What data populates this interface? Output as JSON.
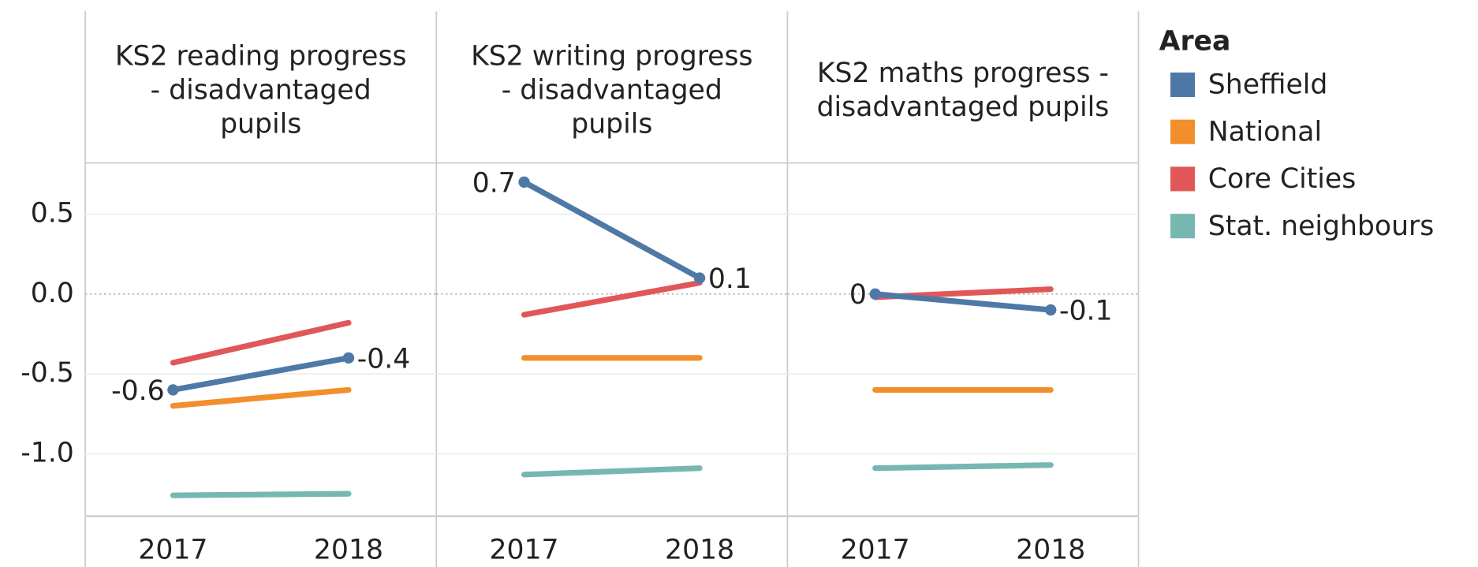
{
  "chart_data": [
    {
      "type": "line",
      "title": [
        "KS2 reading progress",
        "- disadvantaged",
        "pupils"
      ],
      "legend_title": "Area",
      "categories": [
        "2017",
        "2018"
      ],
      "series": [
        {
          "name": "Sheffield",
          "color": "#4e79a7",
          "values": [
            -0.6,
            -0.4
          ],
          "labels": true
        },
        {
          "name": "National",
          "color": "#f28e2b",
          "values": [
            -0.7,
            -0.6
          ]
        },
        {
          "name": "Core Cities",
          "color": "#e15759",
          "values": [
            -0.43,
            -0.18
          ]
        },
        {
          "name": "Stat. neighbours",
          "color": "#76b7b2",
          "values": [
            -1.26,
            -1.25
          ]
        }
      ],
      "ylim": [
        -1.39,
        0.82
      ],
      "yticks": [
        0.5,
        {
          "value": 0,
          "label": "0.0"
        },
        -0.5,
        {
          "value": -1,
          "label": "-1.0"
        }
      ],
      "grid": true
    },
    {
      "type": "line",
      "title": [
        "KS2 writing progress",
        "- disadvantaged",
        "pupils"
      ],
      "categories": [
        "2017",
        "2018"
      ],
      "series": [
        {
          "name": "Sheffield",
          "color": "#4e79a7",
          "values": [
            0.7,
            0.1
          ],
          "labels": true
        },
        {
          "name": "National",
          "color": "#f28e2b",
          "values": [
            -0.4,
            -0.4
          ]
        },
        {
          "name": "Core Cities",
          "color": "#e15759",
          "values": [
            -0.13,
            0.07
          ]
        },
        {
          "name": "Stat. neighbours",
          "color": "#76b7b2",
          "values": [
            -1.13,
            -1.09
          ]
        }
      ],
      "ylim": [
        -1.39,
        0.82
      ],
      "yticks": [
        0.5,
        {
          "value": 0,
          "label": "0.0"
        },
        -0.5,
        {
          "value": -1,
          "label": "-1.0"
        }
      ],
      "grid": true
    },
    {
      "type": "line",
      "title": [
        "KS2 maths progress -",
        "disadvantaged pupils"
      ],
      "categories": [
        "2017",
        "2018"
      ],
      "series": [
        {
          "name": "Sheffield",
          "color": "#4e79a7",
          "values": [
            0,
            -0.1
          ],
          "labels": true
        },
        {
          "name": "National",
          "color": "#f28e2b",
          "values": [
            -0.6,
            -0.6
          ]
        },
        {
          "name": "Core Cities",
          "color": "#e15759",
          "values": [
            -0.02,
            0.03
          ]
        },
        {
          "name": "Stat. neighbours",
          "color": "#76b7b2",
          "values": [
            -1.09,
            -1.07
          ]
        }
      ],
      "ylim": [
        -1.39,
        0.82
      ],
      "yticks": [
        0.5,
        {
          "value": 0,
          "label": "0.0"
        },
        -0.5,
        {
          "value": -1,
          "label": "-1.0"
        }
      ],
      "grid": true
    }
  ]
}
